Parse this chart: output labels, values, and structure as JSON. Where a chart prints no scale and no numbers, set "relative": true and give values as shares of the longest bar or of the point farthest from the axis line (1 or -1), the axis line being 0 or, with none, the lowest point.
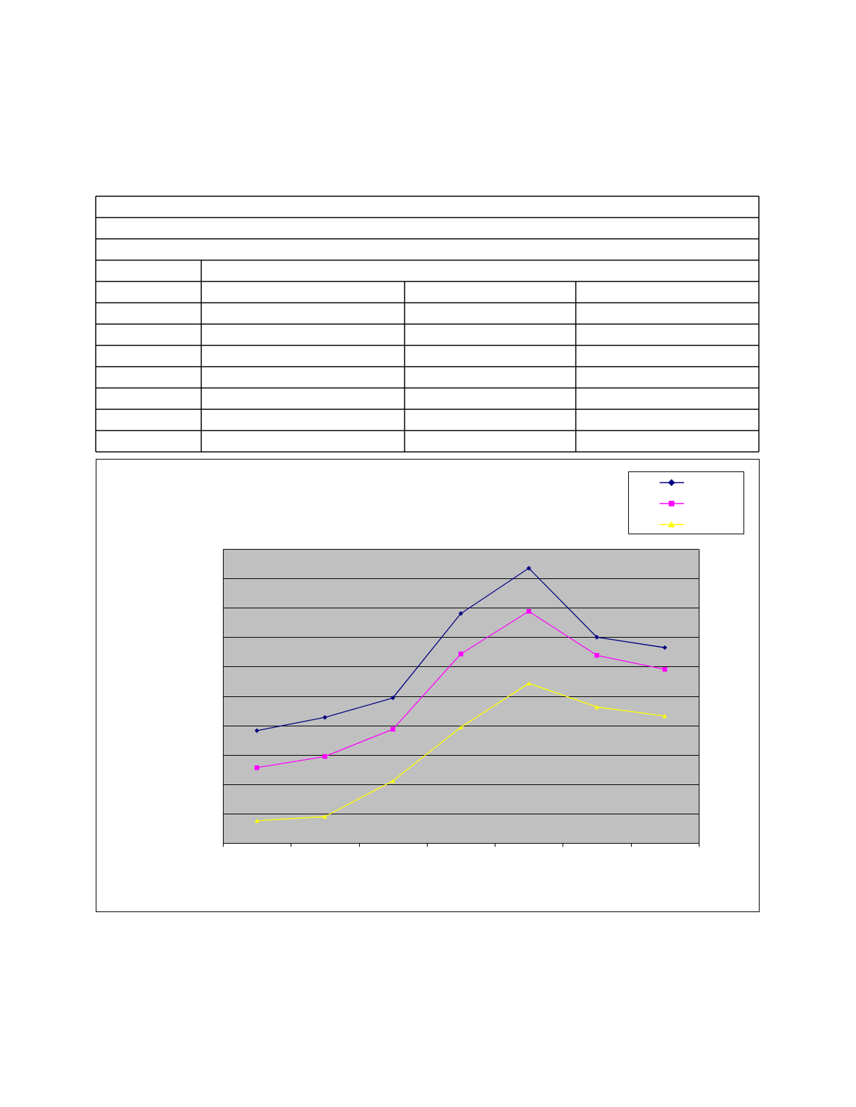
{
  "chart_data": {
    "type": "line",
    "relative": true,
    "categories": [
      null,
      null,
      null,
      null,
      null,
      null,
      null
    ],
    "series": [
      {
        "color": "#000080",
        "marker": "diamond",
        "values": [
          0.409,
          0.457,
          0.528,
          0.835,
          1,
          0.749,
          0.711
        ]
      },
      {
        "color": "#ff00ff",
        "marker": "square",
        "values": [
          0.274,
          0.315,
          0.414,
          0.688,
          0.843,
          0.683,
          0.632
        ]
      },
      {
        "color": "#ffff00",
        "marker": "triangle",
        "values": [
          0.081,
          0.096,
          0.226,
          0.421,
          0.581,
          0.495,
          0.462
        ]
      }
    ],
    "grid": "y"
  }
}
